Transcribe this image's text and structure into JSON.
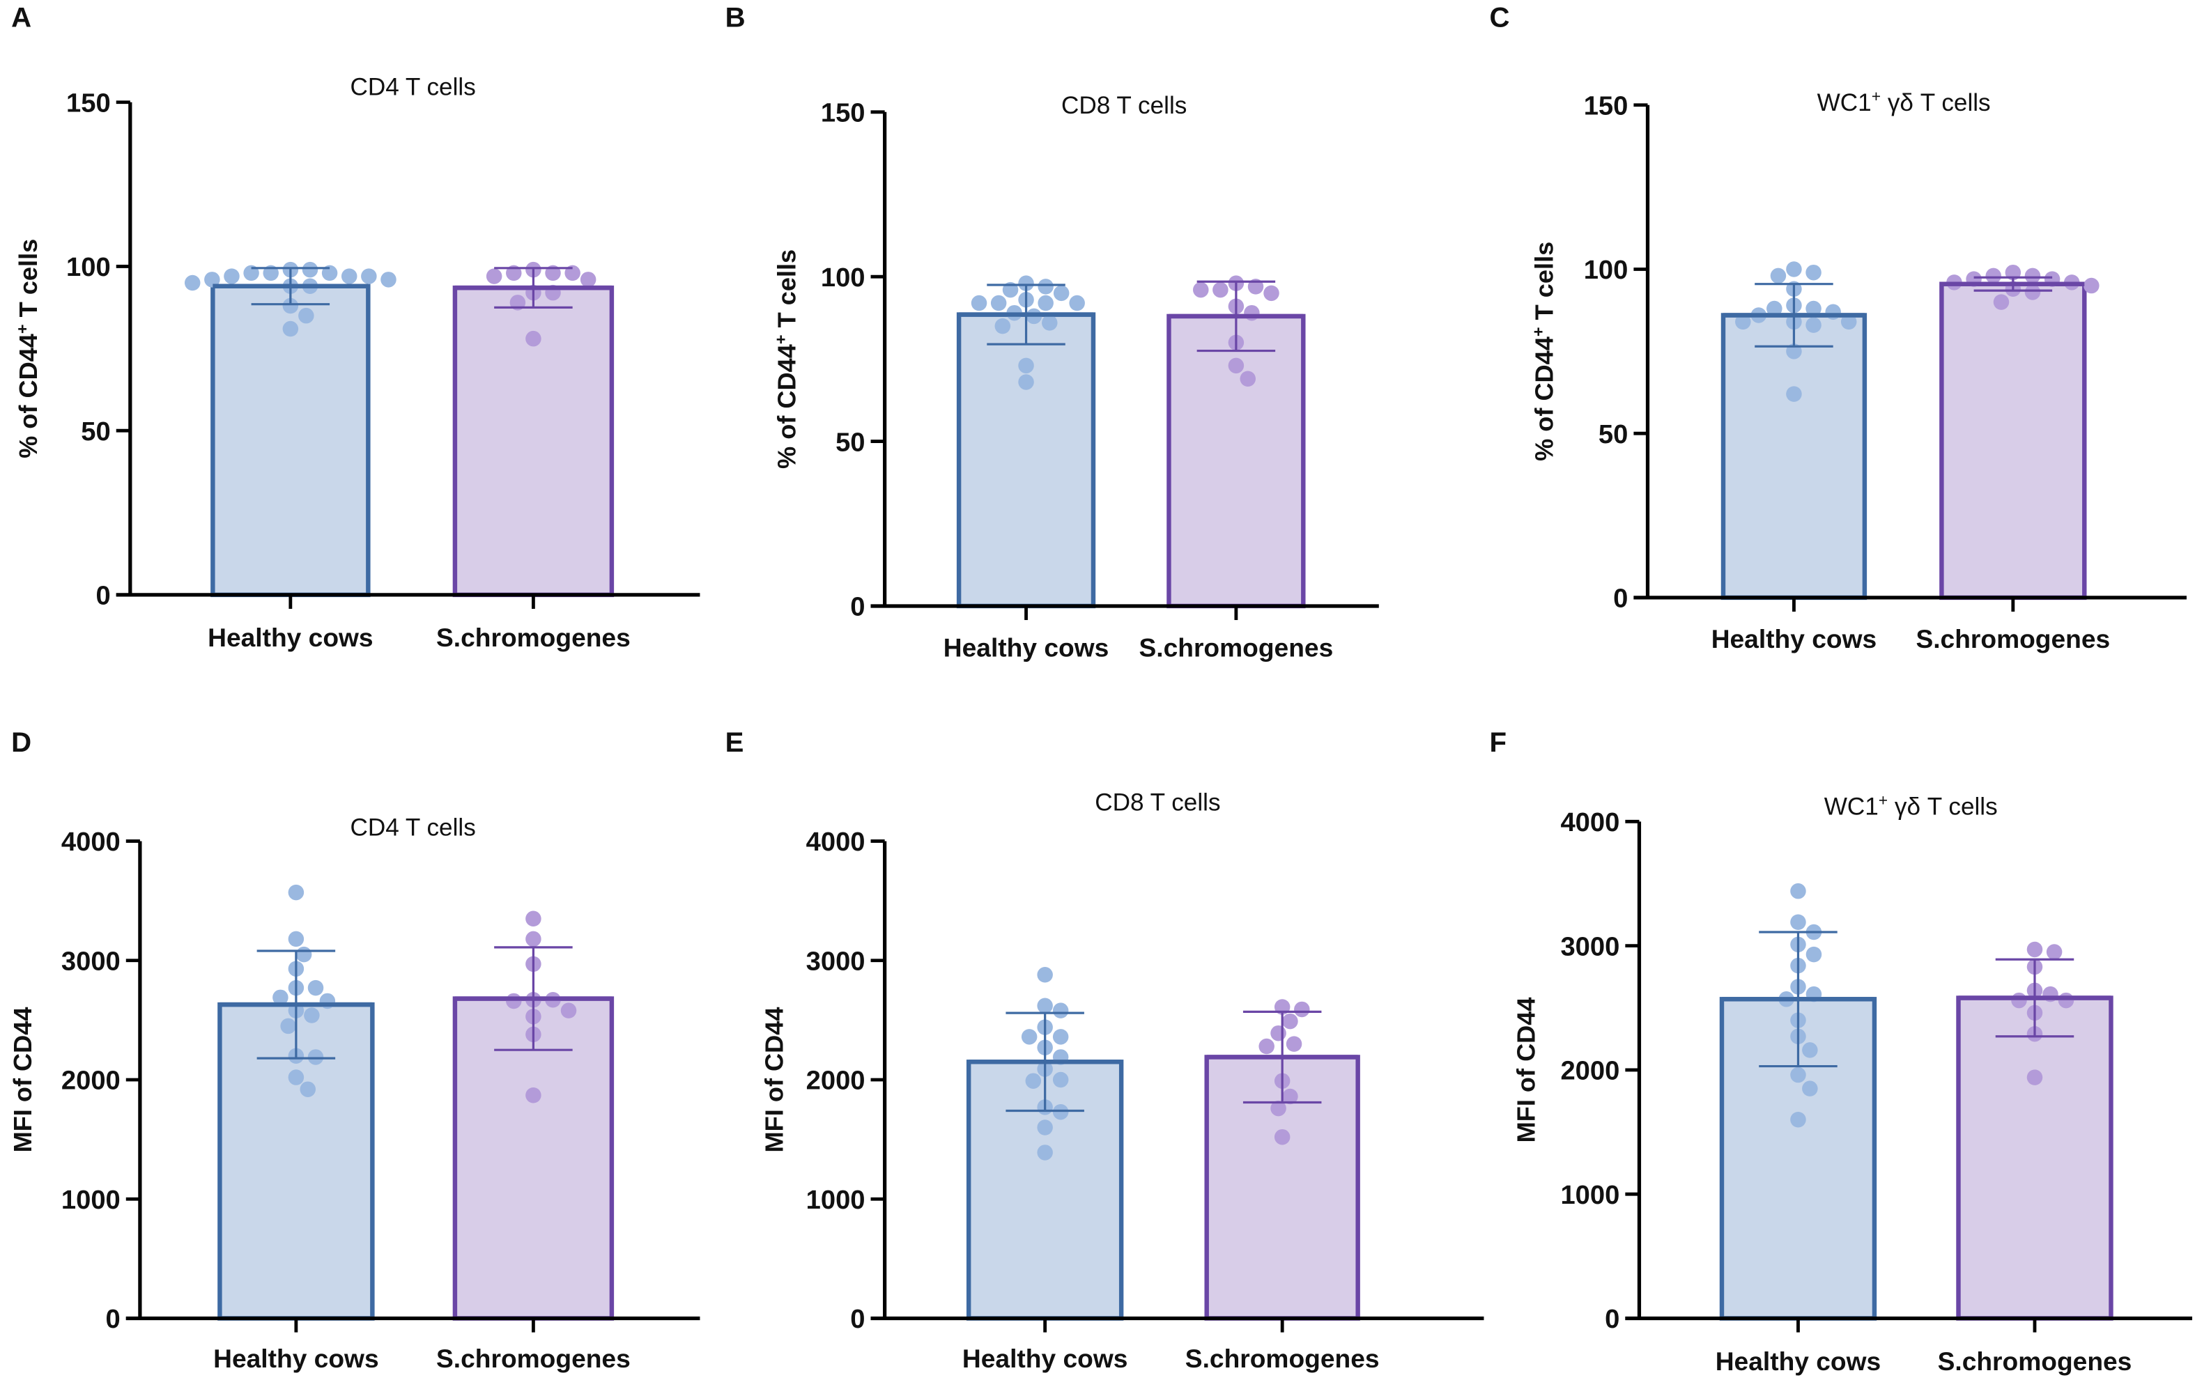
{
  "colors": {
    "healthy_fill": "#c9d7ea",
    "healthy_stroke": "#3e6aa3",
    "healthy_dot": "#9ab8e0",
    "strep_fill": "#d8cde8",
    "strep_stroke": "#6a46a6",
    "strep_dot": "#b39bd9"
  },
  "chart_data": [
    {
      "panel": "A",
      "type": "bar",
      "title": {
        "main": "CD4 T cells",
        "sup": "",
        "rest": ""
      },
      "ylabel": {
        "main": "% of CD44",
        "sup": "+",
        "rest": " T cells"
      },
      "ylim": [
        0,
        150
      ],
      "yticks": [
        "0",
        "50",
        "100",
        "150"
      ],
      "categories": [
        "Healthy cows",
        "S.chromogenes"
      ],
      "series": [
        {
          "name": "Healthy cows",
          "mean": 94,
          "sd": 5.5,
          "points": [
            97,
            98,
            98,
            99,
            97,
            99,
            96,
            94,
            94,
            95,
            98,
            96,
            97,
            88,
            85,
            81
          ]
        },
        {
          "name": "S.chromogenes",
          "mean": 93.5,
          "sd": 6,
          "points": [
            96,
            98,
            99,
            97,
            92,
            98,
            92,
            98,
            89,
            78
          ]
        }
      ]
    },
    {
      "panel": "B",
      "type": "bar",
      "title": {
        "main": "CD8 T cells",
        "sup": "",
        "rest": ""
      },
      "ylabel": {
        "main": "% of CD44",
        "sup": "+",
        "rest": " T cells"
      },
      "ylim": [
        0,
        150
      ],
      "yticks": [
        "0",
        "50",
        "100",
        "150"
      ],
      "categories": [
        "Healthy cows",
        "S.chromogenes"
      ],
      "series": [
        {
          "name": "Healthy cows",
          "mean": 88.5,
          "sd": 9,
          "points": [
            98,
            97,
            96,
            95,
            93,
            92,
            92,
            92,
            92,
            89,
            88,
            86,
            85,
            73,
            68
          ]
        },
        {
          "name": "S.chromogenes",
          "mean": 88,
          "sd": 10.5,
          "points": [
            96,
            96,
            97,
            98,
            95,
            91,
            89,
            80,
            73,
            69
          ]
        }
      ]
    },
    {
      "panel": "C",
      "type": "bar",
      "title": {
        "main": "WC1",
        "sup": "+",
        "rest": " γδ T cells"
      },
      "ylabel": {
        "main": "% of CD44",
        "sup": "+",
        "rest": " T cells"
      },
      "ylim": [
        0,
        150
      ],
      "yticks": [
        "0",
        "50",
        "100",
        "150"
      ],
      "categories": [
        "Healthy cows",
        "S.chromogenes"
      ],
      "series": [
        {
          "name": "Healthy cows",
          "mean": 86,
          "sd": 9.5,
          "points": [
            99,
            100,
            98,
            94,
            89,
            88,
            88,
            87,
            86,
            84,
            84,
            83,
            84,
            75,
            62
          ]
        },
        {
          "name": "S.chromogenes",
          "mean": 95.5,
          "sd": 2,
          "points": [
            97,
            98,
            97,
            99,
            98,
            96,
            96,
            93,
            95,
            94,
            90
          ]
        }
      ]
    },
    {
      "panel": "D",
      "type": "bar",
      "title": {
        "main": "CD4 T cells",
        "sup": "",
        "rest": ""
      },
      "ylabel": {
        "main": "MFI of CD44",
        "sup": "",
        "rest": ""
      },
      "ylim": [
        0,
        4000
      ],
      "yticks": [
        "0",
        "1000",
        "2000",
        "3000",
        "4000"
      ],
      "categories": [
        "Healthy cows",
        "S.chromogenes"
      ],
      "series": [
        {
          "name": "Healthy cows",
          "mean": 2630,
          "sd": 450,
          "points": [
            3570,
            3180,
            3050,
            2930,
            2770,
            2770,
            2690,
            2660,
            2580,
            2540,
            2450,
            2200,
            2190,
            2020,
            1920
          ]
        },
        {
          "name": "S.chromogenes",
          "mean": 2680,
          "sd": 430,
          "points": [
            3350,
            3180,
            2970,
            2670,
            2660,
            2670,
            2580,
            2530,
            2380,
            1870
          ]
        }
      ]
    },
    {
      "panel": "E",
      "type": "bar",
      "title": {
        "main": "CD8 T cells",
        "sup": "",
        "rest": ""
      },
      "ylabel": {
        "main": "MFI of CD44",
        "sup": "",
        "rest": ""
      },
      "ylim": [
        0,
        4000
      ],
      "yticks": [
        "0",
        "1000",
        "2000",
        "3000",
        "4000"
      ],
      "categories": [
        "Healthy cows",
        "S.chromogenes"
      ],
      "series": [
        {
          "name": "Healthy cows",
          "mean": 2150,
          "sd": 410,
          "points": [
            2880,
            2620,
            2580,
            2440,
            2360,
            2360,
            2270,
            2190,
            2090,
            2000,
            1990,
            1770,
            1730,
            1600,
            1390
          ]
        },
        {
          "name": "S.chromogenes",
          "mean": 2190,
          "sd": 380,
          "points": [
            2590,
            2610,
            2490,
            2390,
            2300,
            2280,
            1990,
            1860,
            1760,
            1520
          ]
        }
      ]
    },
    {
      "panel": "F",
      "type": "bar",
      "title": {
        "main": "WC1",
        "sup": "+",
        "rest": " γδ T cells"
      },
      "ylabel": {
        "main": "MFI of CD44",
        "sup": "",
        "rest": ""
      },
      "ylim": [
        0,
        4000
      ],
      "yticks": [
        "0",
        "1000",
        "2000",
        "3000",
        "4000"
      ],
      "categories": [
        "Healthy cows",
        "S.chromogenes"
      ],
      "series": [
        {
          "name": "Healthy cows",
          "mean": 2570,
          "sd": 540,
          "points": [
            3440,
            3190,
            3110,
            3010,
            2930,
            2840,
            2670,
            2610,
            2570,
            2400,
            2270,
            2160,
            1960,
            1850,
            1600
          ]
        },
        {
          "name": "S.chromogenes",
          "mean": 2580,
          "sd": 310,
          "points": [
            2970,
            2950,
            2830,
            2640,
            2610,
            2560,
            2560,
            2460,
            2290,
            1940
          ]
        }
      ]
    }
  ]
}
